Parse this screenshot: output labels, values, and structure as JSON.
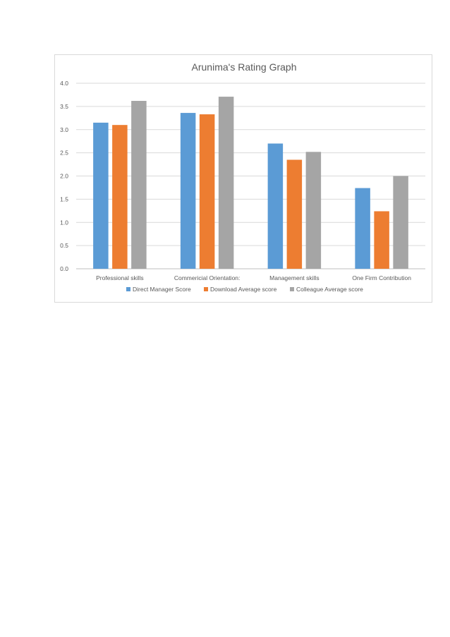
{
  "chart_data": {
    "type": "bar",
    "title": "Arunima's Rating Graph",
    "xlabel": "",
    "ylabel": "",
    "categories": [
      "Professional skills",
      "Commericial Orientation:",
      "Management skills",
      "One Firm Contribution"
    ],
    "series": [
      {
        "name": "Direct Manager Score",
        "color": "#5b9bd5",
        "values": [
          3.15,
          3.36,
          2.7,
          1.74
        ]
      },
      {
        "name": "Download Average score",
        "color": "#ed7d31",
        "values": [
          3.1,
          3.33,
          2.35,
          1.24
        ]
      },
      {
        "name": "Colleague Average score",
        "color": "#a5a5a5",
        "values": [
          3.62,
          3.71,
          2.52,
          2.0
        ]
      }
    ],
    "ylim": [
      0,
      4.0
    ],
    "yticks": [
      "0.0",
      "0.5",
      "1.0",
      "1.5",
      "2.0",
      "2.5",
      "3.0",
      "3.5",
      "4.0"
    ],
    "grid": true,
    "legend_position": "bottom"
  }
}
